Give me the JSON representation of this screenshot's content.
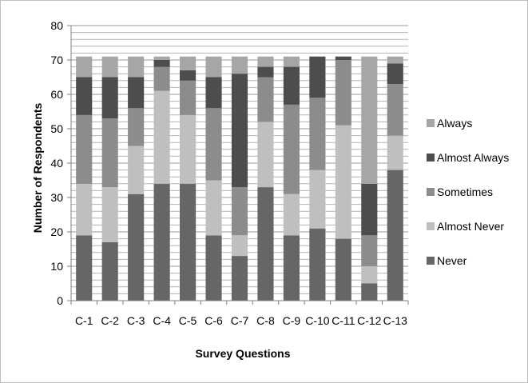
{
  "chart_data": {
    "type": "bar",
    "stacked": true,
    "title": "",
    "xlabel": "Survey Questions",
    "ylabel": "Number of Respondents",
    "ylim": [
      0,
      80
    ],
    "yticks": [
      0,
      10,
      20,
      30,
      40,
      50,
      60,
      70,
      80
    ],
    "grid": true,
    "legend_position": "right",
    "categories": [
      "C-1",
      "C-2",
      "C-3",
      "C-4",
      "C-5",
      "C-6",
      "C-7",
      "C-8",
      "C-9",
      "C-10",
      "C-11",
      "C-12",
      "C-13"
    ],
    "series": [
      {
        "name": "Never",
        "color": "#666666",
        "values": [
          19,
          17,
          31,
          34,
          34,
          19,
          13,
          33,
          19,
          21,
          18,
          5,
          38
        ]
      },
      {
        "name": "Almost Never",
        "color": "#bfbfbf",
        "values": [
          15,
          16,
          14,
          27,
          20,
          16,
          6,
          19,
          12,
          17,
          33,
          5,
          10
        ]
      },
      {
        "name": "Sometimes",
        "color": "#8c8c8c",
        "values": [
          20,
          20,
          11,
          7,
          10,
          21,
          14,
          13,
          26,
          21,
          19,
          9,
          15
        ]
      },
      {
        "name": "Almost Always",
        "color": "#4d4d4d",
        "values": [
          11,
          12,
          9,
          2,
          3,
          9,
          33,
          3,
          11,
          12,
          1,
          15,
          6
        ]
      },
      {
        "name": "Always",
        "color": "#a6a6a6",
        "values": [
          6,
          6,
          6,
          1,
          4,
          6,
          5,
          3,
          3,
          0,
          0,
          37,
          2
        ]
      }
    ],
    "legend_order": [
      "Always",
      "Almost Always",
      "Sometimes",
      "Almost Never",
      "Never"
    ]
  }
}
